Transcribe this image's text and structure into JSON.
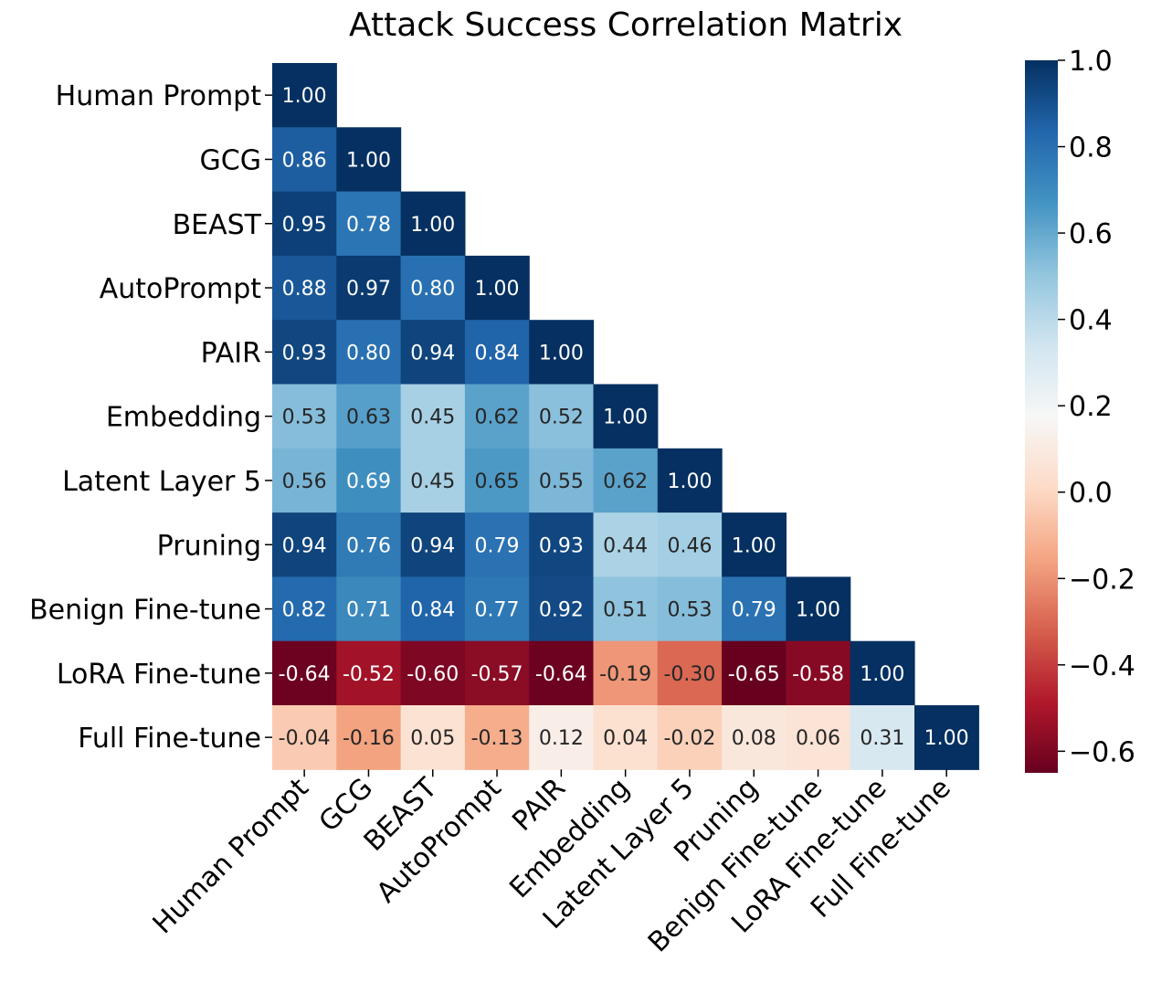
{
  "chart_data": {
    "type": "heatmap",
    "title": "Attack Success Correlation Matrix",
    "xlabel": "",
    "ylabel": "",
    "labels": [
      "Human Prompt",
      "GCG",
      "BEAST",
      "AutoPrompt",
      "PAIR",
      "Embedding",
      "Latent Layer 5",
      "Pruning",
      "Benign Fine-tune",
      "LoRA Fine-tune",
      "Full Fine-tune"
    ],
    "mask": "upper-triangle",
    "matrix": [
      [
        1.0
      ],
      [
        0.86,
        1.0
      ],
      [
        0.95,
        0.78,
        1.0
      ],
      [
        0.88,
        0.97,
        0.8,
        1.0
      ],
      [
        0.93,
        0.8,
        0.94,
        0.84,
        1.0
      ],
      [
        0.53,
        0.63,
        0.45,
        0.62,
        0.52,
        1.0
      ],
      [
        0.56,
        0.69,
        0.45,
        0.65,
        0.55,
        0.62,
        1.0
      ],
      [
        0.94,
        0.76,
        0.94,
        0.79,
        0.93,
        0.44,
        0.46,
        1.0
      ],
      [
        0.82,
        0.71,
        0.84,
        0.77,
        0.92,
        0.51,
        0.53,
        0.79,
        1.0
      ],
      [
        -0.64,
        -0.52,
        -0.6,
        -0.57,
        -0.64,
        -0.19,
        -0.3,
        -0.65,
        -0.58,
        1.0
      ],
      [
        -0.04,
        -0.16,
        0.05,
        -0.13,
        0.12,
        0.04,
        -0.02,
        0.08,
        0.06,
        0.31,
        1.0
      ]
    ],
    "colorbar": {
      "range": [
        -0.65,
        1.0
      ],
      "ticks": [
        1.0,
        0.8,
        0.6,
        0.4,
        0.2,
        0.0,
        -0.2,
        -0.4,
        -0.6
      ],
      "tick_labels": [
        "1.0",
        "0.8",
        "0.6",
        "0.4",
        "0.2",
        "0.0",
        "−0.2",
        "−0.4",
        "−0.6"
      ],
      "colormap": "RdBu",
      "stops": [
        "#67001f",
        "#b2182b",
        "#d6604d",
        "#f4a582",
        "#fddbc7",
        "#f7f7f7",
        "#d1e5f0",
        "#92c5de",
        "#4393c3",
        "#2166ac",
        "#053061"
      ]
    },
    "legend": "colorbar-right"
  }
}
